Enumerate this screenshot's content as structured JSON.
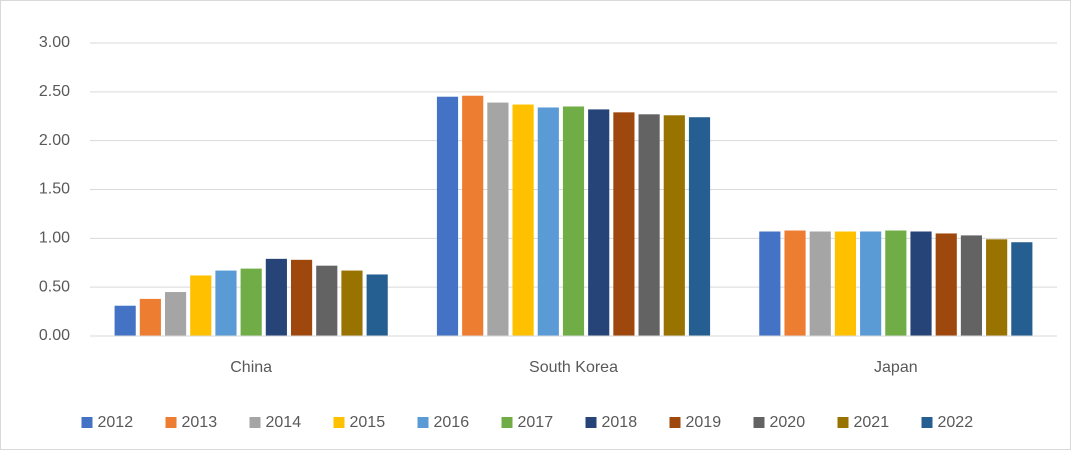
{
  "chart_data": {
    "type": "bar",
    "categories": [
      "China",
      "South Korea",
      "Japan"
    ],
    "series": [
      {
        "name": "2012",
        "color": "#4472c4",
        "values": [
          0.31,
          2.45,
          1.07
        ]
      },
      {
        "name": "2013",
        "color": "#ed7d31",
        "values": [
          0.38,
          2.46,
          1.08
        ]
      },
      {
        "name": "2014",
        "color": "#a5a5a5",
        "values": [
          0.45,
          2.39,
          1.07
        ]
      },
      {
        "name": "2015",
        "color": "#ffc000",
        "values": [
          0.62,
          2.37,
          1.07
        ]
      },
      {
        "name": "2016",
        "color": "#5b9bd5",
        "values": [
          0.67,
          2.34,
          1.07
        ]
      },
      {
        "name": "2017",
        "color": "#70ad47",
        "values": [
          0.69,
          2.35,
          1.08
        ]
      },
      {
        "name": "2018",
        "color": "#264478",
        "values": [
          0.79,
          2.32,
          1.07
        ]
      },
      {
        "name": "2019",
        "color": "#9e480e",
        "values": [
          0.78,
          2.29,
          1.05
        ]
      },
      {
        "name": "2020",
        "color": "#636363",
        "values": [
          0.72,
          2.27,
          1.03
        ]
      },
      {
        "name": "2021",
        "color": "#997300",
        "values": [
          0.67,
          2.26,
          0.99
        ]
      },
      {
        "name": "2022",
        "color": "#255e91",
        "values": [
          0.63,
          2.24,
          0.96
        ]
      }
    ],
    "ylim": [
      0,
      3
    ],
    "yticks": [
      {
        "value": 0,
        "label": "0.00"
      },
      {
        "value": 0.5,
        "label": "0.50"
      },
      {
        "value": 1,
        "label": "1.00"
      },
      {
        "value": 1.5,
        "label": "1.50"
      },
      {
        "value": 2,
        "label": "2.00"
      },
      {
        "value": 2.5,
        "label": "2.50"
      },
      {
        "value": 3,
        "label": "3.00"
      }
    ],
    "grid": true,
    "legend": "bottom"
  }
}
